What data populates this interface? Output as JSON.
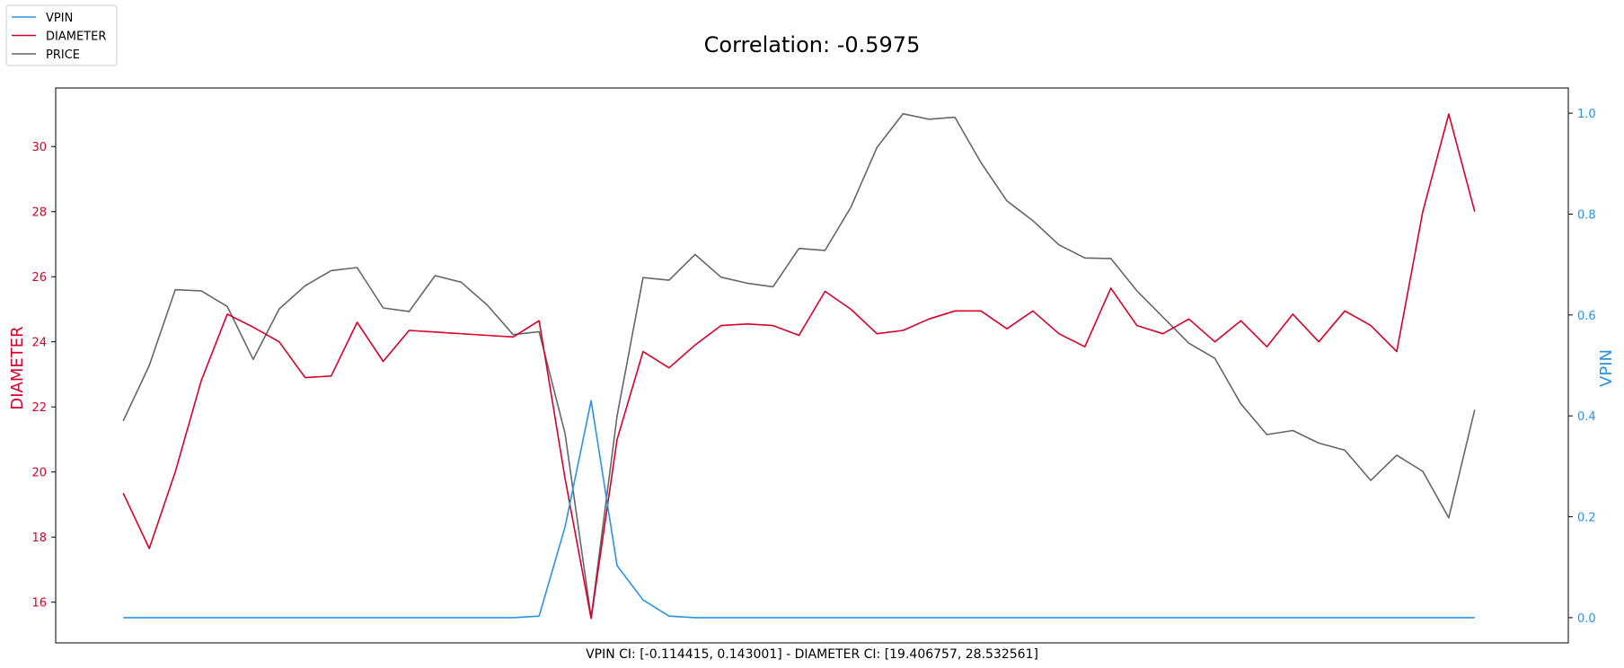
{
  "chart_data": {
    "type": "line",
    "title": "Correlation: -0.5975",
    "xlabel": "VPIN CI: [-0.114415, 0.143001] - DIAMETER CI: [19.406757, 28.532561]",
    "x": [
      0,
      1,
      2,
      3,
      4,
      5,
      6,
      7,
      8,
      9,
      10,
      11,
      12,
      13,
      14,
      15,
      16,
      17,
      18,
      19,
      20,
      21,
      22,
      23,
      24,
      25,
      26,
      27,
      28,
      29,
      30,
      31,
      32,
      33,
      34,
      35,
      36,
      37,
      38,
      39,
      40,
      41,
      42,
      43,
      44,
      45,
      46,
      47,
      48,
      49,
      50,
      51,
      52
    ],
    "xlim": [
      -2.6,
      55.6
    ],
    "left_axis": {
      "label": "DIAMETER",
      "color": "#d6002a",
      "ylim": [
        14.75,
        31.8
      ],
      "ticks": [
        16,
        18,
        20,
        22,
        24,
        26,
        28,
        30
      ]
    },
    "right_axis": {
      "label": "VPIN",
      "color": "#2a92e6",
      "ylim": [
        -0.05,
        1.05
      ],
      "ticks": [
        0.0,
        0.2,
        0.4,
        0.6,
        0.8,
        1.0
      ],
      "tick_labels": [
        "0.0",
        "0.2",
        "0.4",
        "0.6",
        "0.8",
        "1.0"
      ]
    },
    "series": [
      {
        "name": "VPIN",
        "axis": "right",
        "color": "#2a92e6",
        "values": [
          0,
          0,
          0,
          0,
          0,
          0,
          0,
          0,
          0,
          0,
          0,
          0,
          0,
          0,
          0,
          0,
          0.003,
          0.18,
          0.43,
          0.103,
          0.035,
          0.003,
          0,
          0,
          0,
          0,
          0,
          0,
          0,
          0,
          0,
          0,
          0,
          0,
          0,
          0,
          0,
          0,
          0,
          0,
          0,
          0,
          0,
          0,
          0,
          0,
          0,
          0,
          0,
          0,
          0,
          0,
          0
        ]
      },
      {
        "name": "DIAMETER",
        "axis": "left",
        "color": "#d6002a",
        "values": [
          19.35,
          17.65,
          20.0,
          22.8,
          24.85,
          24.45,
          24.0,
          22.9,
          22.95,
          24.6,
          23.4,
          24.35,
          24.3,
          24.25,
          24.2,
          24.15,
          24.65,
          19.8,
          15.5,
          21.0,
          23.7,
          23.2,
          23.9,
          24.5,
          24.55,
          24.5,
          24.2,
          25.55,
          25.0,
          24.25,
          24.35,
          24.7,
          24.95,
          24.95,
          24.4,
          24.95,
          24.25,
          23.85,
          25.65,
          24.5,
          24.25,
          24.7,
          24.0,
          24.65,
          23.85,
          24.85,
          24.0,
          24.95,
          24.5,
          23.7,
          28.0,
          31.0,
          28.0
        ]
      },
      {
        "name": "PRICE",
        "axis": "right",
        "color": "#666666",
        "values": [
          0.39,
          0.5,
          0.65,
          0.648,
          0.617,
          0.512,
          0.612,
          0.658,
          0.688,
          0.694,
          0.614,
          0.607,
          0.678,
          0.665,
          0.62,
          0.561,
          0.567,
          0.365,
          0.0,
          0.4,
          0.674,
          0.669,
          0.72,
          0.675,
          0.663,
          0.656,
          0.732,
          0.728,
          0.814,
          0.932,
          0.999,
          0.988,
          0.992,
          0.902,
          0.826,
          0.787,
          0.739,
          0.713,
          0.712,
          0.648,
          0.596,
          0.544,
          0.514,
          0.424,
          0.363,
          0.371,
          0.346,
          0.332,
          0.272,
          0.322,
          0.29,
          0.198,
          0.412
        ]
      }
    ],
    "legend": {
      "placement": "top-left",
      "entries": [
        {
          "label": "VPIN",
          "color": "#2a92e6"
        },
        {
          "label": "DIAMETER",
          "color": "#d6002a"
        },
        {
          "label": "PRICE",
          "color": "#666666"
        }
      ]
    },
    "grid": false
  }
}
